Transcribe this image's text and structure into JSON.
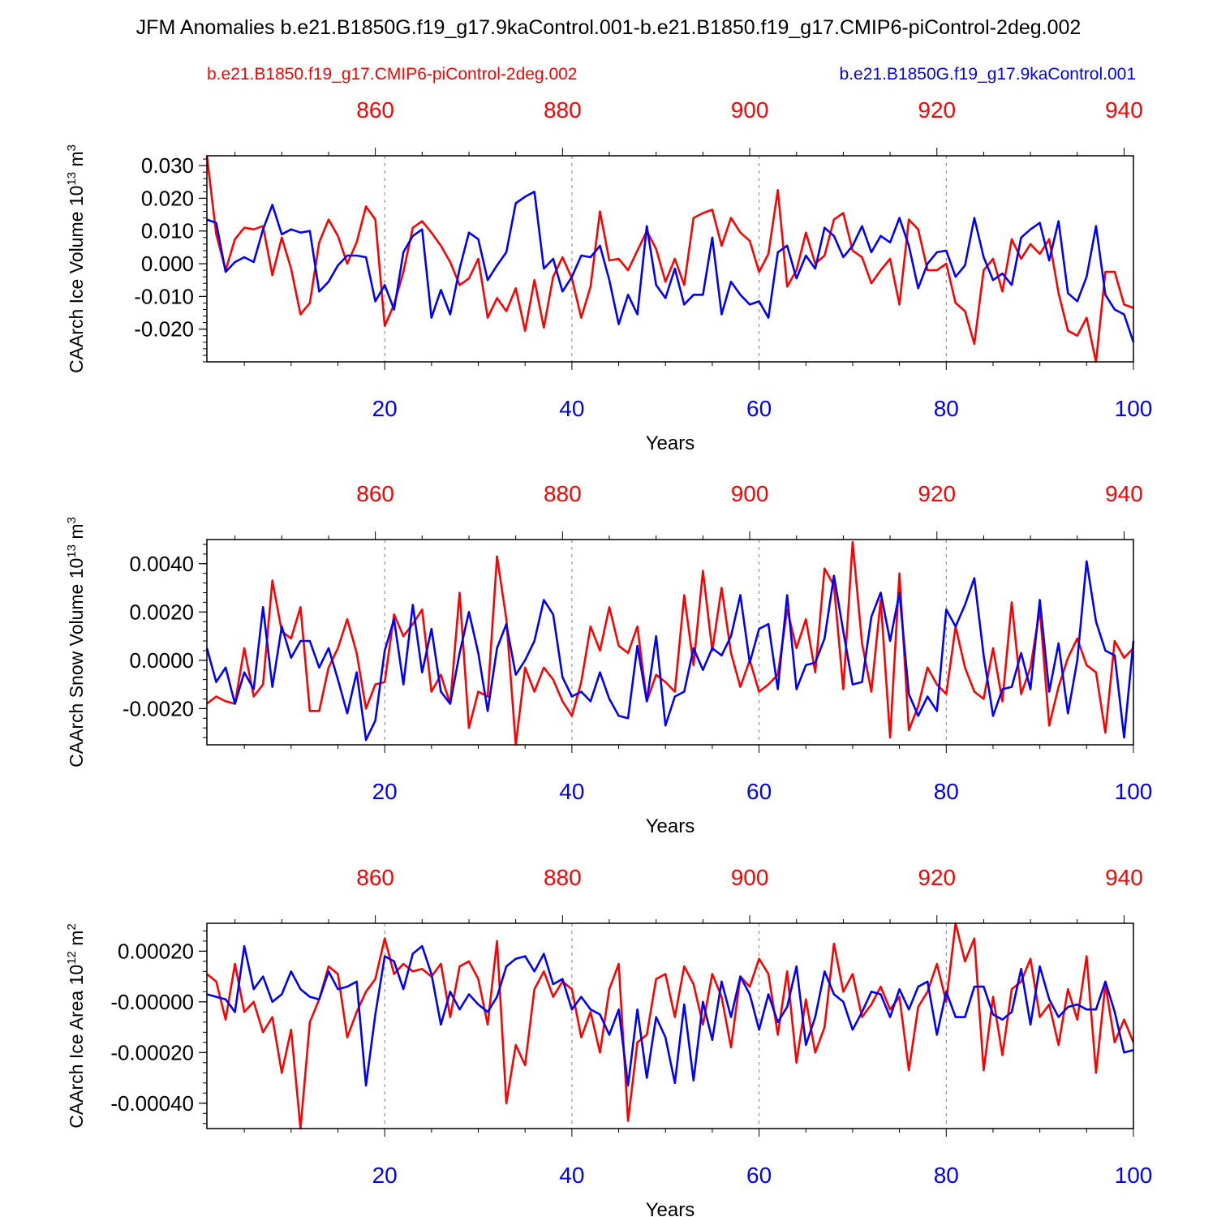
{
  "title": "JFM Anomalies b.e21.B1850G.f19_g17.9kaControl.001-b.e21.B1850.f19_g17.CMIP6-piControl-2deg.002",
  "legend": {
    "red_label": "b.e21.B1850.f19_g17.CMIP6-piControl-2deg.002",
    "blue_label": "b.e21.B1850G.f19_g17.9kaControl.001"
  },
  "colors": {
    "red": "#ff0000",
    "blue": "#0000ff",
    "axis": "#000000",
    "grid": "#808080"
  },
  "chart_data": [
    {
      "type": "line",
      "ylabel": "CAArch Ice Volume 10",
      "ylabel_exp": "13",
      "ylabel_unit": " m",
      "ylabel_unit_exp": "3",
      "xlabel": "Years",
      "xlim": [
        1,
        100
      ],
      "ylim": [
        -0.03,
        0.033
      ],
      "yticks": [
        0.03,
        0.02,
        0.01,
        0.0,
        -0.01,
        -0.02
      ],
      "ytick_labels": [
        "0.030",
        "0.020",
        "0.010",
        "0.000",
        "-0.010",
        "-0.020"
      ],
      "yminor": 0.002,
      "xticks_bottom": [
        20,
        40,
        60,
        80,
        100
      ],
      "xtick_labels_bottom": [
        "20",
        "40",
        "60",
        "80",
        "100"
      ],
      "xticks_top": [
        860,
        880,
        900,
        920,
        940
      ],
      "xtick_labels_top": [
        "860",
        "880",
        "900",
        "920",
        "940"
      ],
      "top_axis_offset": 841,
      "series": [
        {
          "name": "b.e21.B1850.f19_g17.CMIP6-piControl-2deg.002",
          "color": "red",
          "values": [
            0.033,
            0.009,
            -0.002,
            0.0075,
            0.011,
            0.0105,
            0.0115,
            -0.0035,
            0.008,
            -0.0015,
            -0.0155,
            -0.012,
            0.0065,
            0.0135,
            0.0085,
            0.0,
            0.0065,
            0.0175,
            0.0135,
            -0.019,
            -0.0125,
            -0.0025,
            0.011,
            0.013,
            0.0095,
            0.0055,
            0.0005,
            -0.0065,
            -0.0045,
            0.0015,
            -0.0165,
            -0.0105,
            -0.0145,
            -0.0075,
            -0.0205,
            -0.005,
            -0.0195,
            -0.004,
            0.002,
            -0.0045,
            -0.0165,
            -0.007,
            0.016,
            0.001,
            0.0015,
            -0.002,
            0.004,
            0.01,
            0.0045,
            -0.0055,
            0.0015,
            -0.0065,
            0.014,
            0.0155,
            0.0165,
            0.0055,
            0.014,
            0.0095,
            0.007,
            -0.0025,
            0.003,
            0.0225,
            -0.007,
            -0.002,
            0.0095,
            0.0,
            0.0025,
            0.0135,
            0.0155,
            0.004,
            0.002,
            -0.006,
            -0.002,
            0.0015,
            -0.0125,
            0.0135,
            0.0105,
            -0.002,
            -0.002,
            0.0,
            -0.012,
            -0.0145,
            -0.0245,
            -0.002,
            0.0015,
            -0.0085,
            0.0075,
            0.0015,
            0.006,
            0.003,
            0.0075,
            -0.009,
            -0.0205,
            -0.022,
            -0.0165,
            -0.03,
            -0.0025,
            -0.0025,
            -0.0125,
            -0.0135
          ]
        },
        {
          "name": "b.e21.B1850G.f19_g17.9kaControl.001",
          "color": "blue",
          "values": [
            0.0135,
            0.0125,
            -0.0025,
            0.0005,
            0.002,
            0.0005,
            0.0105,
            0.018,
            0.009,
            0.0105,
            0.0095,
            0.01,
            -0.0085,
            -0.0055,
            -0.0005,
            0.0025,
            0.0025,
            0.002,
            -0.0115,
            -0.0065,
            -0.014,
            0.0035,
            0.0085,
            0.0105,
            -0.0165,
            -0.008,
            -0.0155,
            -0.0015,
            0.0095,
            0.0075,
            -0.005,
            -0.0005,
            0.0035,
            0.0185,
            0.0205,
            0.022,
            -0.0015,
            0.0015,
            -0.0085,
            -0.004,
            0.0025,
            0.002,
            0.0055,
            -0.005,
            -0.0185,
            -0.0095,
            -0.0155,
            0.0115,
            -0.0065,
            -0.0105,
            -0.0015,
            -0.0125,
            -0.0095,
            -0.0095,
            0.008,
            -0.0155,
            -0.0055,
            -0.0095,
            -0.0125,
            -0.0115,
            -0.0165,
            0.0035,
            0.0055,
            -0.0045,
            0.0025,
            -0.0015,
            0.011,
            0.0085,
            0.002,
            0.0055,
            0.0115,
            0.0035,
            0.0085,
            0.0065,
            0.014,
            0.0055,
            -0.0075,
            0.0,
            0.0035,
            0.004,
            -0.004,
            -0.0005,
            0.014,
            0.002,
            -0.005,
            -0.003,
            -0.0065,
            0.008,
            0.0105,
            0.0125,
            0.001,
            0.013,
            -0.009,
            -0.0115,
            -0.004,
            0.0115,
            -0.0095,
            -0.014,
            -0.0155,
            -0.024
          ]
        }
      ]
    },
    {
      "type": "line",
      "ylabel": "CAArch Snow Volume 10",
      "ylabel_exp": "13",
      "ylabel_unit": " m",
      "ylabel_unit_exp": "3",
      "xlabel": "Years",
      "xlim": [
        1,
        100
      ],
      "ylim": [
        -0.0035,
        0.005
      ],
      "yticks": [
        0.004,
        0.002,
        0.0,
        -0.002
      ],
      "ytick_labels": [
        "0.0040",
        "0.0020",
        "0.0000",
        "-0.0020"
      ],
      "yminor": 0.0004,
      "xticks_bottom": [
        20,
        40,
        60,
        80,
        100
      ],
      "xtick_labels_bottom": [
        "20",
        "40",
        "60",
        "80",
        "100"
      ],
      "xticks_top": [
        860,
        880,
        900,
        920,
        940
      ],
      "xtick_labels_top": [
        "860",
        "880",
        "900",
        "920",
        "940"
      ],
      "top_axis_offset": 841,
      "series": [
        {
          "name": "b.e21.B1850.f19_g17.CMIP6-piControl-2deg.002",
          "color": "red",
          "values": [
            -0.0018,
            -0.0015,
            -0.0017,
            -0.0018,
            0.0005,
            -0.0015,
            -0.001,
            0.0033,
            0.0012,
            0.0009,
            0.0022,
            -0.0021,
            -0.0021,
            -0.0003,
            0.0005,
            0.0017,
            0.0003,
            -0.002,
            -0.001,
            -0.0009,
            0.0019,
            0.001,
            0.0015,
            0.0021,
            -0.0013,
            -0.0006,
            -0.0018,
            0.0028,
            -0.0028,
            -0.0013,
            -0.0015,
            0.0043,
            0.0017,
            -0.0035,
            -0.0003,
            -0.0013,
            -0.0003,
            -0.0008,
            -0.0017,
            -0.0023,
            -0.0009,
            0.0014,
            0.0004,
            0.0022,
            0.0006,
            0.0003,
            0.0014,
            -0.0017,
            -0.0006,
            -0.0009,
            -0.0013,
            0.0027,
            -0.0002,
            0.0037,
            0.0004,
            0.003,
            0.0003,
            -0.0011,
            0.0,
            -0.0013,
            -0.001,
            -0.0006,
            0.0021,
            0.0005,
            0.0017,
            -0.0005,
            0.0038,
            0.0031,
            -0.0012,
            0.0049,
            0.0007,
            -0.0013,
            0.0025,
            -0.0032,
            0.0036,
            -0.0029,
            -0.0019,
            -0.0003,
            -0.001,
            -0.0014,
            0.0014,
            -0.0003,
            -0.0013,
            -0.0016,
            0.0005,
            -0.0017,
            0.0024,
            -0.0014,
            -0.0003,
            0.0021,
            -0.0027,
            -0.0011,
            0.0001,
            0.0009,
            -0.0002,
            -0.0005,
            -0.003,
            0.0008,
            0.0001,
            0.0005
          ]
        },
        {
          "name": "b.e21.B1850G.f19_g17.9kaControl.001",
          "color": "blue",
          "values": [
            0.0005,
            -0.0009,
            -0.0003,
            -0.0018,
            -0.0005,
            -0.0012,
            0.0022,
            -0.0011,
            0.0014,
            0.0001,
            0.0008,
            0.0008,
            -0.0003,
            0.0005,
            -0.0008,
            -0.0022,
            -0.0005,
            -0.0033,
            -0.0025,
            0.0004,
            0.0017,
            -0.001,
            0.0023,
            -0.0005,
            0.0013,
            -0.0013,
            -0.0018,
            0.0003,
            0.002,
            0.0003,
            -0.0021,
            0.0005,
            0.0015,
            -0.0006,
            0.0,
            0.0008,
            0.0025,
            0.0019,
            -0.0007,
            -0.0015,
            -0.0013,
            -0.0017,
            -0.0005,
            -0.0016,
            -0.0023,
            -0.0024,
            0.0006,
            -0.0017,
            0.001,
            -0.0027,
            -0.0015,
            -0.0013,
            0.0005,
            -0.0004,
            0.0005,
            0.0002,
            0.001,
            0.0027,
            -0.0001,
            0.0013,
            0.0015,
            -0.0012,
            0.0027,
            -0.0012,
            -0.0002,
            -0.0001,
            0.0009,
            0.0035,
            0.0012,
            -0.001,
            -0.0009,
            0.0018,
            0.0028,
            0.0008,
            0.0028,
            -0.0014,
            -0.0023,
            -0.0015,
            -0.0021,
            0.0021,
            0.0014,
            0.0023,
            0.0034,
            0.0002,
            -0.0023,
            -0.0012,
            -0.0011,
            0.0003,
            -0.0012,
            0.0025,
            -0.0013,
            0.0007,
            -0.0022,
            0.0,
            0.0041,
            0.0016,
            0.0004,
            0.0002,
            -0.0032,
            0.0008
          ]
        }
      ]
    },
    {
      "type": "line",
      "ylabel": "CAArch Ice Area 10",
      "ylabel_exp": "12",
      "ylabel_unit": " m",
      "ylabel_unit_exp": "2",
      "xlabel": "Years",
      "xlim": [
        1,
        100
      ],
      "ylim": [
        -0.0005,
        0.00031
      ],
      "yticks": [
        0.0002,
        0.0,
        -0.0002,
        -0.0004
      ],
      "ytick_labels": [
        "0.00020",
        "-0.00000",
        "-0.00020",
        "-0.00040"
      ],
      "yminor": 4e-05,
      "xticks_bottom": [
        20,
        40,
        60,
        80,
        100
      ],
      "xtick_labels_bottom": [
        "20",
        "40",
        "60",
        "80",
        "100"
      ],
      "xticks_top": [
        860,
        880,
        900,
        920,
        940
      ],
      "xtick_labels_top": [
        "860",
        "880",
        "900",
        "920",
        "940"
      ],
      "top_axis_offset": 841,
      "series": [
        {
          "name": "b.e21.B1850.f19_g17.CMIP6-piControl-2deg.002",
          "color": "red",
          "values": [
            0.00011,
            8e-05,
            -7e-05,
            0.00015,
            -4e-05,
            0.0,
            -0.00012,
            -6e-05,
            -0.00028,
            -0.00011,
            -0.0005,
            -8e-05,
            1e-05,
            0.00014,
            0.00011,
            -0.00014,
            -4e-05,
            4e-05,
            9e-05,
            0.00025,
            0.00011,
            0.00015,
            0.00012,
            0.00013,
            0.0001,
            0.00015,
            -6e-05,
            0.00014,
            0.00016,
            9e-05,
            -9e-05,
            0.00024,
            -0.0004,
            -0.00017,
            -0.00025,
            5e-05,
            0.00012,
            2e-05,
            8e-05,
            5e-05,
            -0.00014,
            -4e-05,
            -0.0002,
            5e-05,
            0.00015,
            -0.00047,
            -0.00016,
            -0.00013,
            9e-05,
            0.00011,
            -6e-05,
            0.00014,
            7e-05,
            -9e-05,
            0.00011,
            2e-05,
            -0.00018,
            0.0001,
            6e-05,
            0.00017,
            0.00011,
            -0.00013,
            0.00012,
            -0.00024,
            1e-05,
            -0.0002,
            -0.0001,
            0.00023,
            4e-05,
            0.00011,
            -6e-05,
            -1e-05,
            6e-05,
            -3e-05,
            2e-05,
            -0.00027,
            -2e-05,
            4e-05,
            0.00015,
            0.0,
            0.00031,
            0.00016,
            0.00025,
            -0.00027,
            2e-05,
            -0.00021,
            5e-05,
            8e-05,
            0.00017,
            -6e-05,
            -1e-05,
            -0.00017,
            5e-05,
            -7e-05,
            0.00018,
            -0.00028,
            7e-05,
            -0.00016,
            -7e-05,
            -0.00016
          ]
        },
        {
          "name": "b.e21.B1850G.f19_g17.9kaControl.001",
          "color": "blue",
          "values": [
            3e-05,
            2e-05,
            1e-05,
            -4e-05,
            0.00022,
            5e-05,
            0.0001,
            0.0,
            3e-05,
            0.00012,
            5e-05,
            2e-05,
            1e-05,
            0.00012,
            5e-05,
            6e-05,
            8e-05,
            -0.00033,
            -5e-05,
            0.00018,
            0.00016,
            5e-05,
            0.00019,
            0.00022,
            0.00011,
            -9e-05,
            4e-05,
            -3e-05,
            3e-05,
            -1e-05,
            -4e-05,
            2e-05,
            0.00014,
            0.00017,
            0.00018,
            0.00012,
            0.00019,
            7e-05,
            9e-05,
            -3e-05,
            2e-05,
            -3e-05,
            -5e-05,
            -0.00013,
            -3e-05,
            -0.00033,
            -3e-05,
            -0.0003,
            -6e-05,
            -0.00014,
            -0.00032,
            -1e-05,
            -0.00031,
            0.0,
            -0.00015,
            8e-05,
            -6e-05,
            0.0001,
            3e-05,
            -0.00011,
            3e-05,
            -8e-05,
            -2e-05,
            0.00014,
            -0.00017,
            -6e-05,
            0.00012,
            3e-05,
            0.0,
            -0.00011,
            -4e-05,
            4e-05,
            3e-05,
            -6e-05,
            5e-05,
            -3e-05,
            6e-05,
            8e-05,
            -0.00013,
            4e-05,
            -6e-05,
            -6e-05,
            6e-05,
            6e-05,
            -5e-05,
            -7e-05,
            -4e-05,
            0.00013,
            -9e-05,
            0.00014,
            1e-05,
            -6e-05,
            -2e-05,
            -1e-05,
            -3e-05,
            -3e-05,
            8e-05,
            -4e-05,
            -0.0002,
            -0.00019
          ]
        }
      ]
    }
  ]
}
